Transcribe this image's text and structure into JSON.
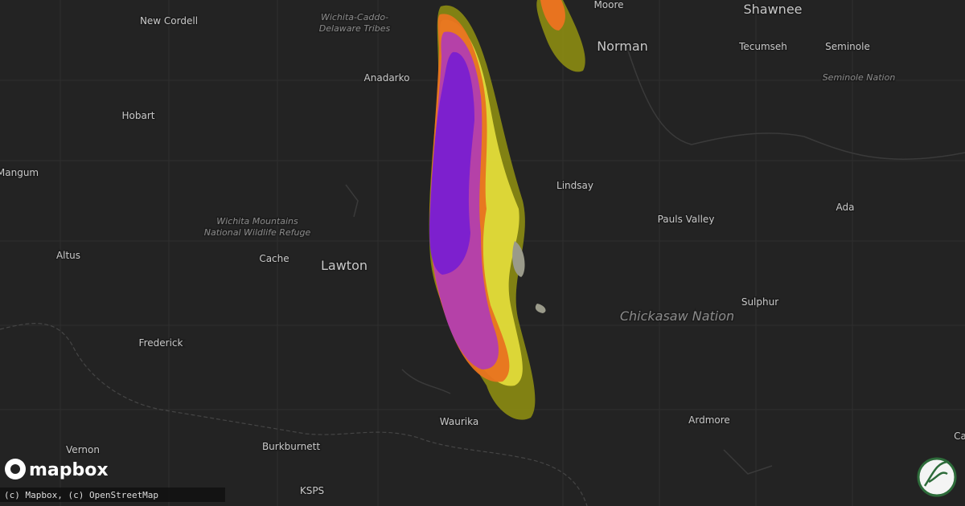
{
  "map": {
    "places": [
      "New Cordell",
      "Moore",
      "Shawnee",
      "Tecumseh",
      "Norman",
      "Seminole",
      "Hobart",
      "Anadarko",
      "Mangum",
      "Lindsay",
      "Ada",
      "Pauls Valley",
      "Altus",
      "Cache",
      "Lawton",
      "Sulphur",
      "Frederick",
      "Vernon",
      "Waurika",
      "Ardmore",
      "Burkburnett",
      "KSPS",
      "Ca"
    ],
    "regions": [
      {
        "lines": [
          "Wichita-Caddo-",
          "Delaware Tribes"
        ]
      },
      {
        "lines": [
          "Seminole Nation"
        ]
      },
      {
        "lines": [
          "Wichita Mountains",
          "National Wildlife Refuge"
        ]
      },
      {
        "lines": [
          "Chickasaw Nation"
        ]
      }
    ],
    "logo": "mapbox",
    "attribution": "(c) Mapbox, (c) OpenStreetMap"
  }
}
